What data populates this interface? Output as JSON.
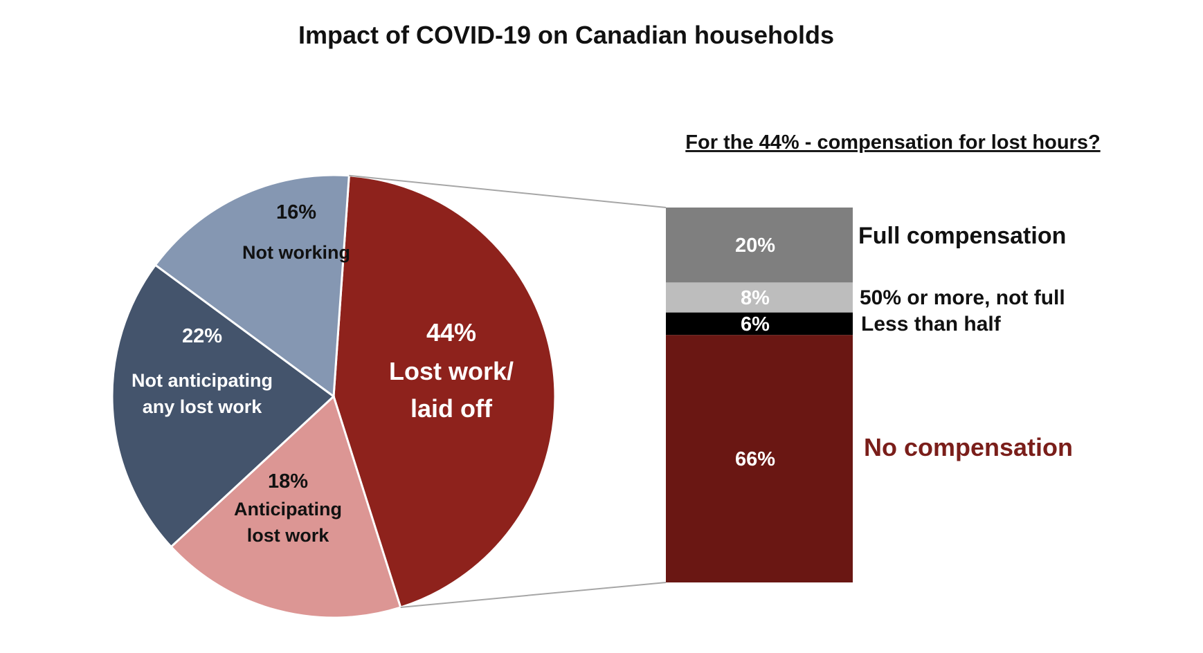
{
  "chart_data": [
    {
      "type": "pie",
      "title": "Impact of COVID-19 on Canadian households",
      "slices": [
        {
          "label": "Lost work/ laid off",
          "lines": [
            "Lost work/",
            "laid off"
          ],
          "pct_label": "44%",
          "value": 44,
          "color": "#8e221c",
          "text_color": "#ffffff"
        },
        {
          "label": "Anticipating lost work",
          "lines": [
            "Anticipating",
            "lost work"
          ],
          "pct_label": "18%",
          "value": 18,
          "color": "#dc9694",
          "text_color": "#111111"
        },
        {
          "label": "Not anticipating any lost work",
          "lines": [
            "Not anticipating",
            "any lost work"
          ],
          "pct_label": "22%",
          "value": 22,
          "color": "#44546c",
          "text_color": "#ffffff"
        },
        {
          "label": "Not working",
          "lines": [
            "Not working"
          ],
          "pct_label": "16%",
          "value": 16,
          "color": "#8597b2",
          "text_color": "#111111"
        }
      ]
    },
    {
      "type": "bar",
      "stacked": true,
      "title": "For the 44% - compensation for lost hours?",
      "segments": [
        {
          "label": "Full compensation",
          "pct_label": "20%",
          "value": 20,
          "color": "#7f7f7f",
          "label_color": "#111111",
          "value_color": "#ffffff"
        },
        {
          "label": "50% or more, not full",
          "pct_label": "8%",
          "value": 8,
          "color": "#bdbdbd",
          "label_color": "#111111",
          "value_color": "#ffffff"
        },
        {
          "label": "Less than half",
          "pct_label": "6%",
          "value": 6,
          "color": "#000000",
          "label_color": "#111111",
          "value_color": "#ffffff"
        },
        {
          "label": "No compensation",
          "pct_label": "66%",
          "value": 66,
          "color": "#6a1713",
          "label_color": "#7a1e1a",
          "value_color": "#ffffff"
        }
      ]
    }
  ]
}
